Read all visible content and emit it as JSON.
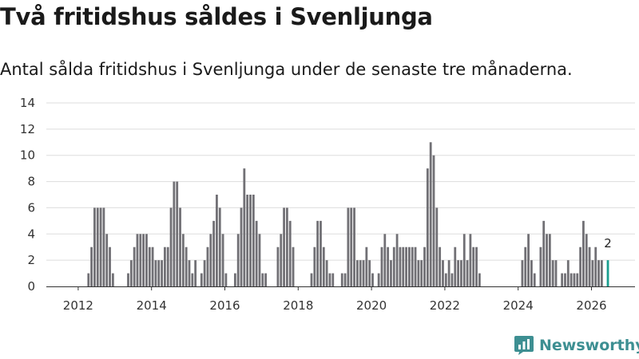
{
  "header": {
    "title": "Två fritidshus såldes i Svenljunga",
    "subtitle": "Antal sålda fritidshus i Svenljunga under de senaste tre månaderna."
  },
  "brand": {
    "name": "Newsworthy"
  },
  "colors": {
    "bar": "#717075",
    "highlight": "#1a9e8f",
    "grid": "#dddddd",
    "brand": "#3d8f92"
  },
  "chart_data": {
    "type": "bar",
    "title": "Två fritidshus såldes i Svenljunga",
    "subtitle": "Antal sålda fritidshus i Svenljunga under de senaste tre månaderna.",
    "xlabel": "",
    "ylabel": "",
    "ylim": [
      0,
      14
    ],
    "y_ticks": [
      "0",
      "2",
      "4",
      "6",
      "8",
      "10",
      "12",
      "14"
    ],
    "x_ticks": [
      "2012",
      "2014",
      "2016",
      "2018",
      "2020",
      "2022",
      "2024",
      "2026"
    ],
    "grid": true,
    "period": "monthly, rolling three-month count",
    "start": "2011-01",
    "series": [
      {
        "name": "Sålda fritidshus",
        "values": [
          0,
          0,
          0,
          0,
          0,
          0,
          0,
          0,
          0,
          0,
          0,
          0,
          0,
          0,
          0,
          1,
          3,
          6,
          6,
          6,
          6,
          4,
          3,
          1,
          0,
          0,
          0,
          0,
          1,
          2,
          3,
          4,
          4,
          4,
          4,
          3,
          3,
          2,
          2,
          2,
          3,
          3,
          6,
          8,
          8,
          6,
          4,
          3,
          2,
          1,
          2,
          0,
          1,
          2,
          3,
          4,
          5,
          7,
          6,
          4,
          1,
          0,
          0,
          1,
          4,
          6,
          9,
          7,
          7,
          7,
          5,
          4,
          1,
          1,
          0,
          0,
          0,
          3,
          4,
          6,
          6,
          5,
          3,
          0,
          0,
          0,
          0,
          0,
          1,
          3,
          5,
          5,
          3,
          2,
          1,
          1,
          0,
          0,
          1,
          1,
          6,
          6,
          6,
          2,
          2,
          2,
          3,
          2,
          1,
          0,
          1,
          3,
          4,
          3,
          2,
          3,
          4,
          3,
          3,
          3,
          3,
          3,
          3,
          2,
          2,
          3,
          9,
          11,
          10,
          6,
          3,
          2,
          1,
          2,
          1,
          3,
          2,
          2,
          4,
          2,
          4,
          3,
          3,
          1,
          0,
          0,
          0,
          0,
          0,
          0,
          0,
          0,
          0,
          0,
          0,
          0,
          0,
          2,
          3,
          4,
          2,
          1,
          0,
          3,
          5,
          4,
          4,
          2,
          2,
          0,
          1,
          1,
          2,
          1,
          1,
          1,
          3,
          5,
          4,
          3,
          2,
          3,
          2,
          2,
          0,
          2
        ]
      }
    ],
    "highlight": {
      "index": 185,
      "value": 2,
      "label": "2"
    }
  }
}
